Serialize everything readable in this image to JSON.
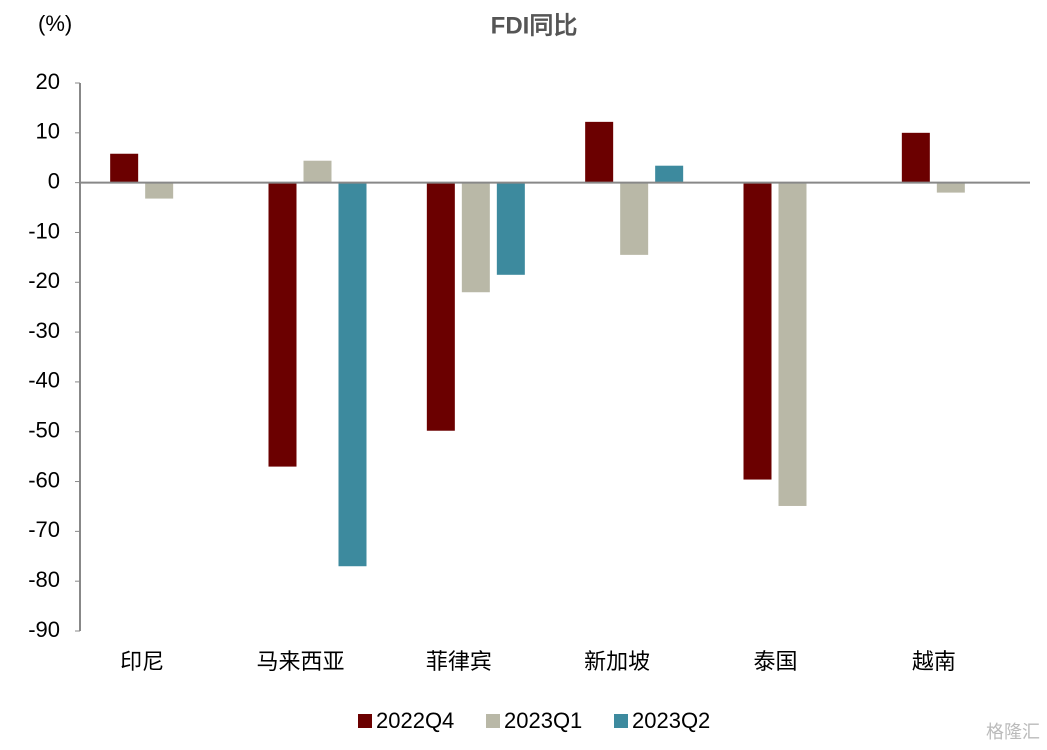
{
  "chart_data": {
    "type": "bar",
    "title": "FDI同比",
    "y_unit_label": "(%)",
    "categories": [
      "印尼",
      "马来西亚",
      "菲律宾",
      "新加坡",
      "泰国",
      "越南"
    ],
    "series": [
      {
        "name": "2022Q4",
        "color": "#6b0000",
        "values": [
          5.8,
          -57,
          -49.8,
          12.2,
          -59.6,
          10
        ]
      },
      {
        "name": "2023Q1",
        "color": "#b9b8a7",
        "values": [
          -3.2,
          4.4,
          -22,
          -14.5,
          -64.9,
          -2
        ]
      },
      {
        "name": "2023Q2",
        "color": "#3d8a9e",
        "values": [
          null,
          -77,
          -18.5,
          3.4,
          null,
          null
        ]
      }
    ],
    "ylim": [
      -90,
      20
    ],
    "yticks": [
      -90,
      -80,
      -70,
      -60,
      -50,
      -40,
      -30,
      -20,
      -10,
      0,
      10,
      20
    ],
    "legend": "bottom",
    "watermark": "格隆汇"
  }
}
